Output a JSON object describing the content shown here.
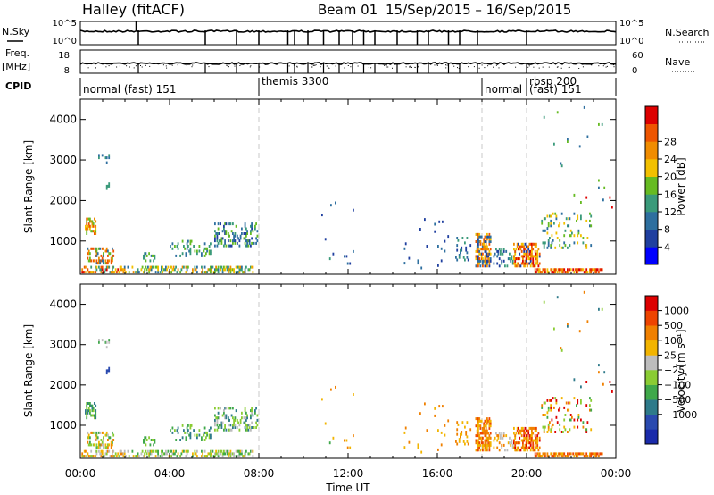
{
  "header": {
    "station": "Halley (fitACF)",
    "beam": "Beam 01",
    "date_range": "15/Sep/2015 – 16/Sep/2015"
  },
  "params": {
    "nsky_label": "N.Sky",
    "nsky_ticks": [
      "10^5",
      "10^0"
    ],
    "nsearch_label": "N.Search",
    "nsearch_ticks": [
      "10^5",
      "10^0"
    ],
    "freq_label": "Freq.",
    "freq_unit": "[MHz]",
    "freq_ticks": [
      "18",
      "8"
    ],
    "nave_label": "Nave",
    "nave_ticks": [
      "60",
      "0"
    ],
    "cpid_label": "CPID"
  },
  "cpid_segments": [
    {
      "label": "normal (fast) 151",
      "start_hour": 0.0,
      "end_hour": 8.0
    },
    {
      "label": "themis 3300",
      "start_hour": 8.0,
      "end_hour": 18.0
    },
    {
      "label": "normal",
      "start_hour": 18.0,
      "end_hour": 20.0
    },
    {
      "label": "rbsp 200",
      "start_hour": 20.0,
      "end_hour": 24.0
    },
    {
      "label": "(fast) 151",
      "start_hour": 20.0,
      "end_hour": 24.0
    }
  ],
  "search_marker_hours": [
    2.6,
    5.6,
    7.0,
    8.0,
    9.3,
    9.6,
    10.2,
    10.9,
    11.6,
    12.2,
    12.7,
    13.2,
    14.2,
    15.1,
    15.6,
    16.5,
    17.0,
    17.8,
    20.0
  ],
  "colors": {
    "power": [
      "#0000ff",
      "#1f3f9f",
      "#2e6f9f",
      "#3a9a7a",
      "#66bb22",
      "#f2c000",
      "#f08c00",
      "#ee5500",
      "#dd0000"
    ],
    "velocity": [
      "#dd0000",
      "#ee4400",
      "#f08000",
      "#f2b400",
      "#bdbdbd",
      "#8acc33",
      "#3fa84a",
      "#2e7a8a",
      "#2a4aaf",
      "#1a2aaa"
    ],
    "session_line": "#c8c8c8"
  },
  "chart_data": [
    {
      "type": "heatmap",
      "panel": "power",
      "ylabel": "Slant Range [km]",
      "xlabel": "",
      "xlim_hours": [
        0,
        24
      ],
      "ylim": [
        180,
        4500
      ],
      "yticks": [
        1000,
        2000,
        3000,
        4000
      ],
      "xticks_hours": [
        0,
        4,
        8,
        12,
        16,
        20,
        24
      ],
      "colorbar": {
        "label": "Power [dB]",
        "range": [
          0,
          30
        ],
        "ticks": [
          "4",
          "8",
          "12",
          "16",
          "20",
          "24",
          "28"
        ]
      },
      "clusters": [
        {
          "t0": 0.05,
          "t1": 1.9,
          "r0": 200,
          "r1": 360,
          "dens": 0.45,
          "c": [
            6,
            7,
            8,
            5,
            3
          ]
        },
        {
          "t0": 0.2,
          "t1": 0.7,
          "r0": 1150,
          "r1": 1550,
          "dens": 0.55,
          "c": [
            6,
            5,
            4,
            7
          ]
        },
        {
          "t0": 0.3,
          "t1": 1.5,
          "r0": 420,
          "r1": 820,
          "dens": 0.4,
          "c": [
            6,
            7,
            4,
            2
          ]
        },
        {
          "t0": 0.8,
          "t1": 1.3,
          "r0": 2900,
          "r1": 3100,
          "dens": 0.18,
          "c": [
            2,
            3
          ]
        },
        {
          "t0": 1.1,
          "t1": 1.3,
          "r0": 2200,
          "r1": 2400,
          "dens": 0.3,
          "c": [
            3
          ]
        },
        {
          "t0": 1.8,
          "t1": 7.7,
          "r0": 200,
          "r1": 330,
          "dens": 0.4,
          "c": [
            4,
            3,
            5,
            2,
            6
          ]
        },
        {
          "t0": 2.8,
          "t1": 3.3,
          "r0": 480,
          "r1": 720,
          "dens": 0.35,
          "c": [
            3,
            2,
            4
          ]
        },
        {
          "t0": 4.0,
          "t1": 5.8,
          "r0": 600,
          "r1": 1000,
          "dens": 0.18,
          "c": [
            2,
            3,
            4
          ]
        },
        {
          "t0": 6.0,
          "t1": 7.9,
          "r0": 850,
          "r1": 1450,
          "dens": 0.28,
          "c": [
            2,
            3,
            4,
            1
          ]
        },
        {
          "t0": 10.8,
          "t1": 12.3,
          "r0": 350,
          "r1": 1950,
          "dens": 0.02,
          "c": [
            1,
            2,
            3
          ]
        },
        {
          "t0": 14.5,
          "t1": 16.5,
          "r0": 300,
          "r1": 1600,
          "dens": 0.02,
          "c": [
            1,
            2
          ]
        },
        {
          "t0": 16.8,
          "t1": 17.5,
          "r0": 500,
          "r1": 1100,
          "dens": 0.18,
          "c": [
            1,
            2,
            3
          ]
        },
        {
          "t0": 17.7,
          "t1": 18.4,
          "r0": 350,
          "r1": 1150,
          "dens": 0.55,
          "c": [
            6,
            5,
            7,
            1,
            2
          ]
        },
        {
          "t0": 18.4,
          "t1": 19.5,
          "r0": 350,
          "r1": 800,
          "dens": 0.22,
          "c": [
            2,
            3,
            1
          ]
        },
        {
          "t0": 19.4,
          "t1": 20.6,
          "r0": 350,
          "r1": 950,
          "dens": 0.55,
          "c": [
            7,
            8,
            6,
            5,
            1
          ]
        },
        {
          "t0": 20.3,
          "t1": 23.4,
          "r0": 200,
          "r1": 290,
          "dens": 0.55,
          "c": [
            6,
            5,
            7,
            8
          ]
        },
        {
          "t0": 20.6,
          "t1": 22.9,
          "r0": 800,
          "r1": 1700,
          "dens": 0.13,
          "c": [
            2,
            3,
            4,
            5
          ]
        },
        {
          "t0": 20.4,
          "t1": 23.9,
          "r0": 1800,
          "r1": 4300,
          "dens": 0.006,
          "c": [
            2,
            3,
            4,
            8
          ]
        }
      ]
    },
    {
      "type": "heatmap",
      "panel": "velocity",
      "ylabel": "Slant Range [km]",
      "xlabel": "Time UT",
      "xlim_hours": [
        0,
        24
      ],
      "ylim": [
        180,
        4500
      ],
      "yticks": [
        1000,
        2000,
        3000,
        4000
      ],
      "xticks": [
        "00:00",
        "04:00",
        "08:00",
        "12:00",
        "16:00",
        "20:00",
        "00:00"
      ],
      "colorbar": {
        "label": "Velocity [m s⁻¹]",
        "range": [
          -1500,
          1500
        ],
        "ticks": [
          "1000",
          "500",
          "100",
          "25",
          "−25",
          "−100",
          "−500",
          "−1000"
        ]
      },
      "clusters": [
        {
          "t0": 0.05,
          "t1": 1.9,
          "r0": 200,
          "r1": 360,
          "dens": 0.45,
          "c": [
            2,
            3,
            5,
            4
          ]
        },
        {
          "t0": 0.2,
          "t1": 0.7,
          "r0": 1150,
          "r1": 1550,
          "dens": 0.55,
          "c": [
            7,
            6,
            5
          ]
        },
        {
          "t0": 0.3,
          "t1": 1.5,
          "r0": 420,
          "r1": 820,
          "dens": 0.4,
          "c": [
            3,
            2,
            5,
            6,
            4
          ]
        },
        {
          "t0": 0.8,
          "t1": 1.3,
          "r0": 2900,
          "r1": 3100,
          "dens": 0.18,
          "c": [
            4,
            6
          ]
        },
        {
          "t0": 1.1,
          "t1": 1.3,
          "r0": 2200,
          "r1": 2400,
          "dens": 0.3,
          "c": [
            8
          ]
        },
        {
          "t0": 1.8,
          "t1": 7.7,
          "r0": 200,
          "r1": 330,
          "dens": 0.4,
          "c": [
            5,
            6,
            4,
            3
          ]
        },
        {
          "t0": 2.8,
          "t1": 3.3,
          "r0": 480,
          "r1": 720,
          "dens": 0.35,
          "c": [
            6,
            5
          ]
        },
        {
          "t0": 4.0,
          "t1": 5.8,
          "r0": 600,
          "r1": 1000,
          "dens": 0.18,
          "c": [
            6,
            7,
            5
          ]
        },
        {
          "t0": 6.0,
          "t1": 7.9,
          "r0": 850,
          "r1": 1450,
          "dens": 0.28,
          "c": [
            5,
            6,
            7,
            4
          ]
        },
        {
          "t0": 10.8,
          "t1": 12.3,
          "r0": 350,
          "r1": 1950,
          "dens": 0.02,
          "c": [
            3,
            2,
            6
          ]
        },
        {
          "t0": 14.5,
          "t1": 16.5,
          "r0": 300,
          "r1": 1600,
          "dens": 0.02,
          "c": [
            2,
            3
          ]
        },
        {
          "t0": 16.8,
          "t1": 17.5,
          "r0": 500,
          "r1": 1100,
          "dens": 0.18,
          "c": [
            2,
            3
          ]
        },
        {
          "t0": 17.7,
          "t1": 18.4,
          "r0": 350,
          "r1": 1150,
          "dens": 0.55,
          "c": [
            2,
            1,
            3
          ]
        },
        {
          "t0": 18.4,
          "t1": 19.5,
          "r0": 350,
          "r1": 800,
          "dens": 0.22,
          "c": [
            3,
            4,
            2
          ]
        },
        {
          "t0": 19.4,
          "t1": 20.6,
          "r0": 350,
          "r1": 950,
          "dens": 0.55,
          "c": [
            2,
            1,
            3,
            0
          ]
        },
        {
          "t0": 20.3,
          "t1": 23.4,
          "r0": 200,
          "r1": 290,
          "dens": 0.55,
          "c": [
            3,
            2,
            1
          ]
        },
        {
          "t0": 20.6,
          "t1": 22.9,
          "r0": 800,
          "r1": 1700,
          "dens": 0.13,
          "c": [
            3,
            2,
            5,
            6,
            0
          ]
        },
        {
          "t0": 20.4,
          "t1": 23.9,
          "r0": 1800,
          "r1": 4300,
          "dens": 0.006,
          "c": [
            2,
            5,
            7,
            0
          ]
        }
      ]
    }
  ]
}
